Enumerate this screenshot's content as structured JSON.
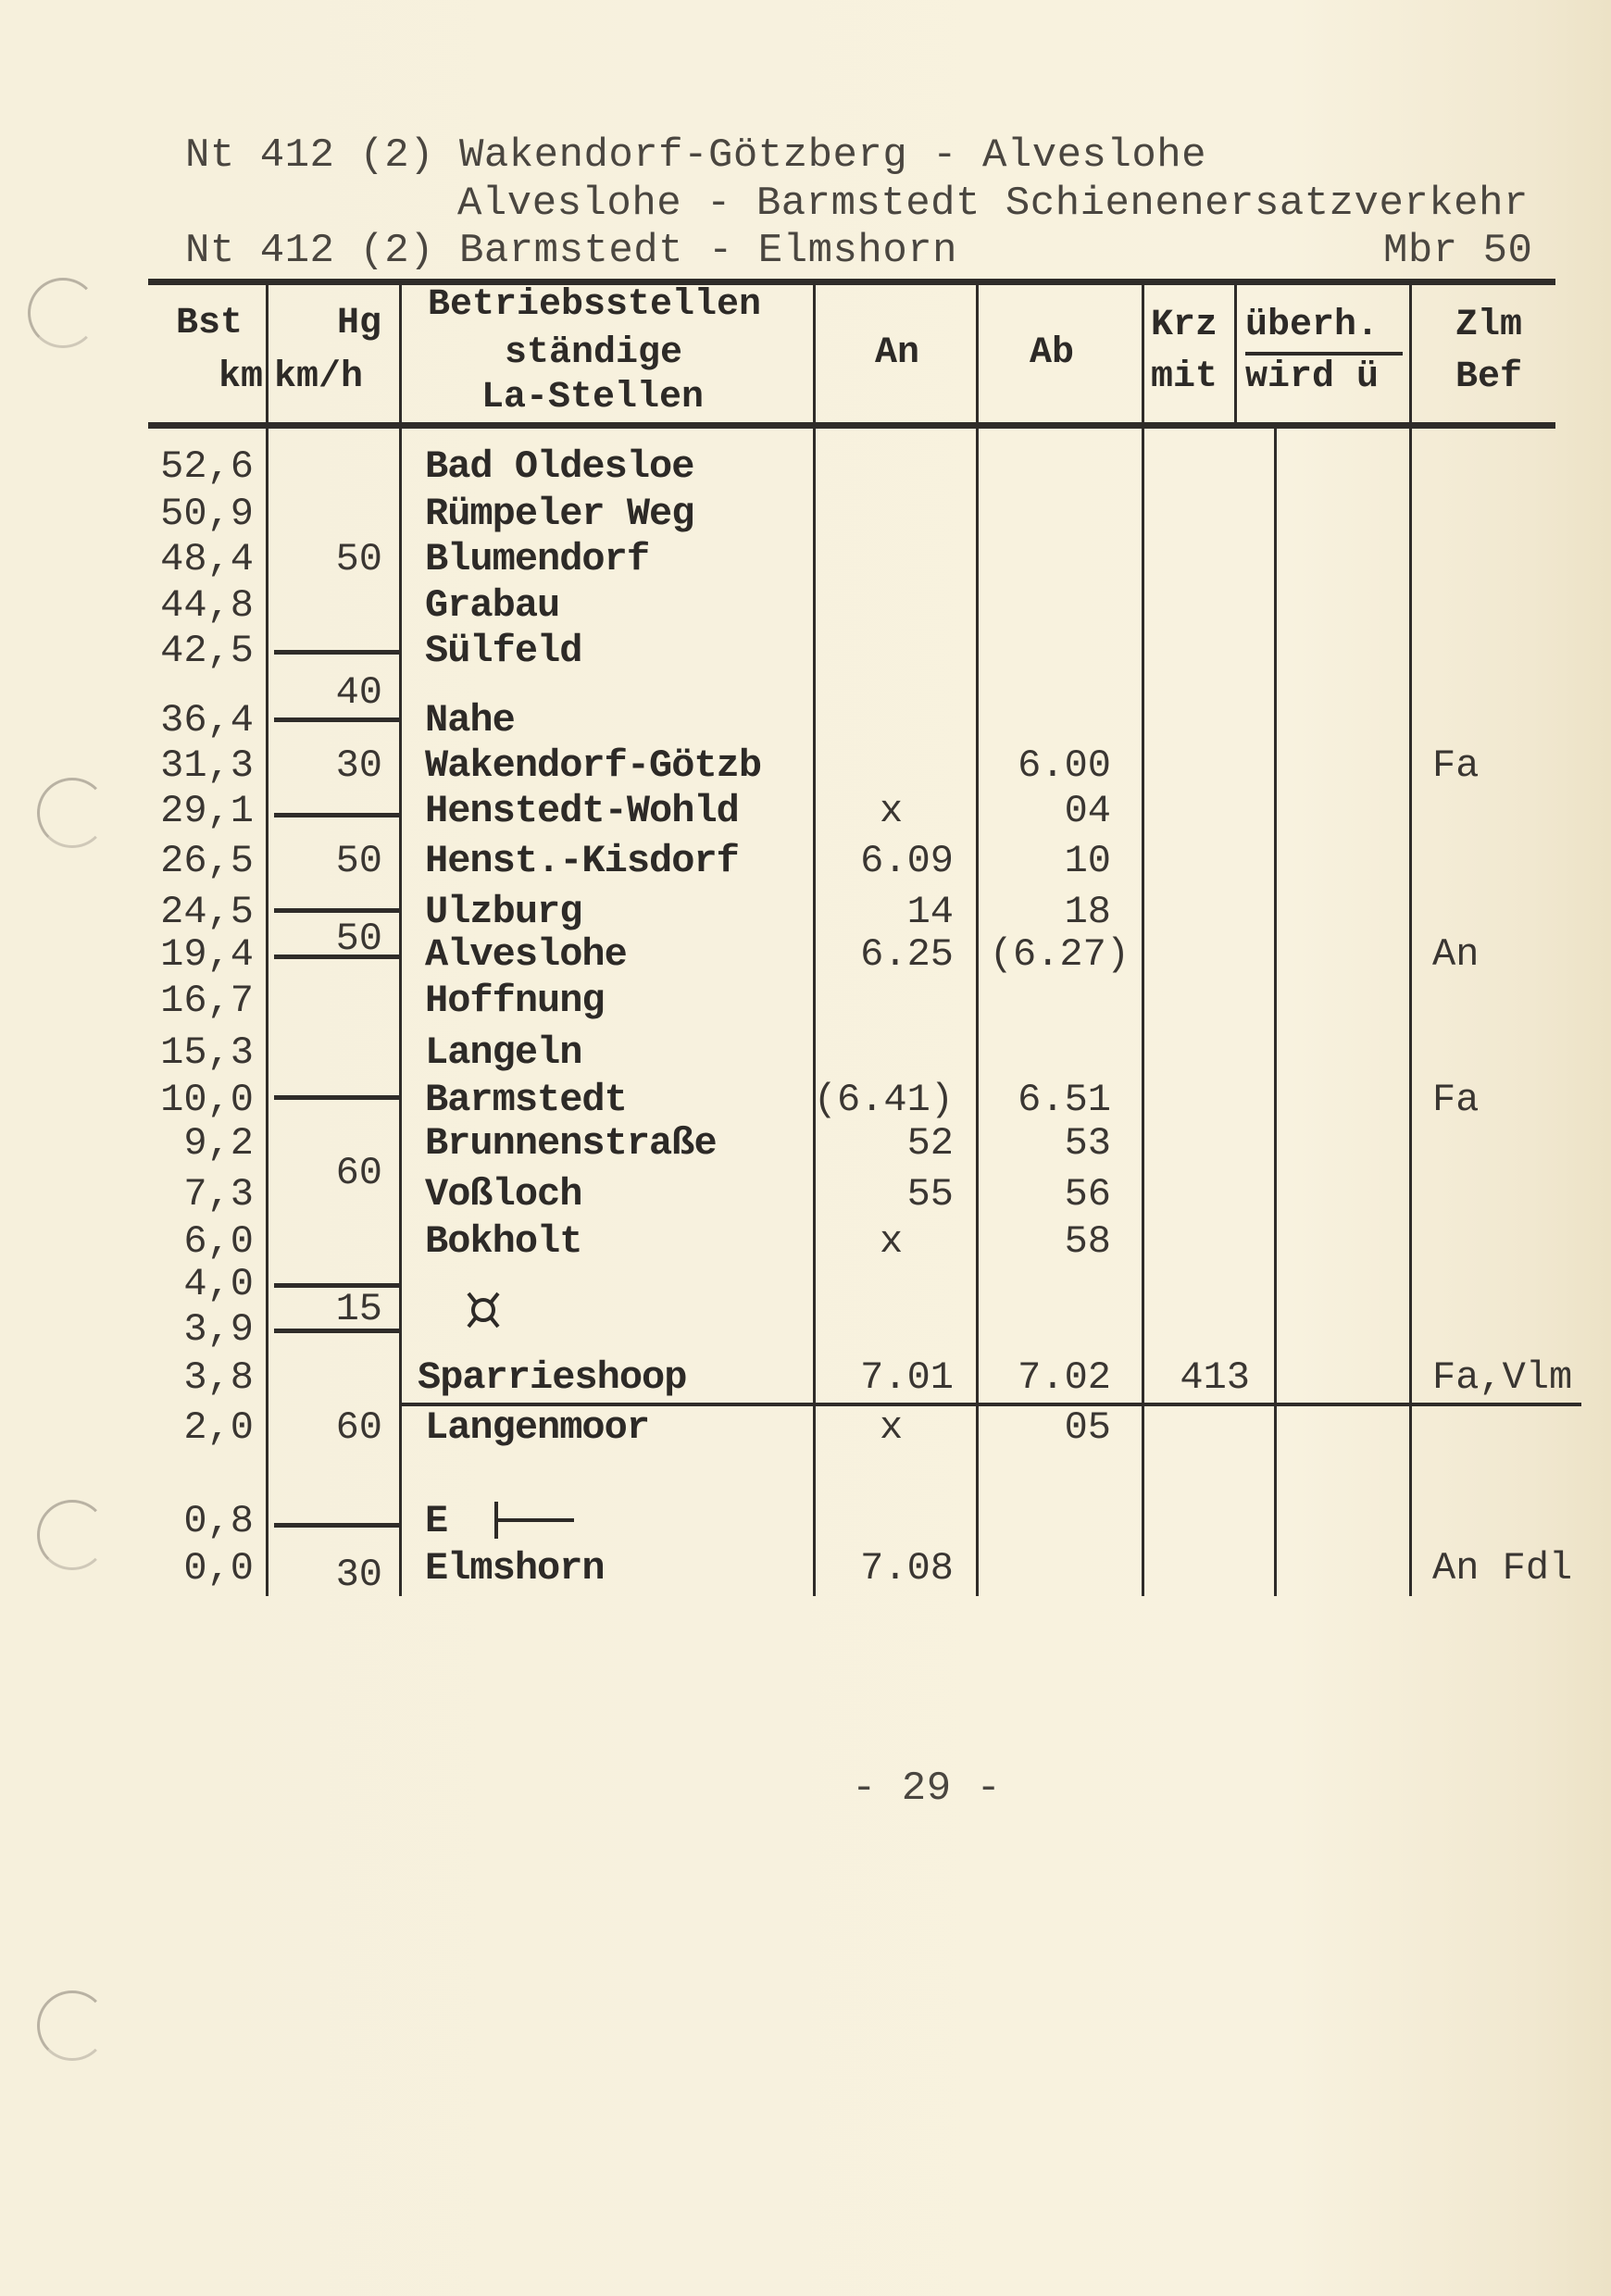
{
  "header": {
    "line1": "Nt 412 (2) Wakendorf-Götzberg - Alveslohe",
    "line2": "Alveslohe - Barmstedt Schienenersatzverkehr",
    "line3": "Nt 412 (2) Barmstedt - Elmshorn",
    "mbr": "Mbr 50"
  },
  "columns": {
    "bst": "Bst",
    "bst_unit": "km",
    "hg": "Hg",
    "hg_unit": "km/h",
    "stations1": "Betriebsstellen",
    "stations2": "ständige",
    "stations3": "La-Stellen",
    "an": "An",
    "ab": "Ab",
    "krz": "Krz",
    "krz2": "mit",
    "uberh": "überh.",
    "uberh2": "wird ü",
    "zlm": "Zlm",
    "zlm2": "Bef"
  },
  "rows": [
    {
      "km": "52,6",
      "station": "Bad Oldesloe",
      "an": "",
      "ab": "",
      "krz": "",
      "zlm": ""
    },
    {
      "km": "50,9",
      "station": "Rümpeler Weg",
      "an": "",
      "ab": "",
      "krz": "",
      "zlm": ""
    },
    {
      "km": "48,4",
      "station": "Blumendorf",
      "an": "",
      "ab": "",
      "krz": "",
      "zlm": ""
    },
    {
      "km": "44,8",
      "station": "Grabau",
      "an": "",
      "ab": "",
      "krz": "",
      "zlm": ""
    },
    {
      "km": "42,5",
      "station": "Sülfeld",
      "an": "",
      "ab": "",
      "krz": "",
      "zlm": ""
    },
    {
      "km": "36,4",
      "station": "Nahe",
      "an": "",
      "ab": "",
      "krz": "",
      "zlm": ""
    },
    {
      "km": "31,3",
      "station": "Wakendorf-Götzb",
      "an": "",
      "ab": "6.00",
      "krz": "",
      "zlm": "Fa"
    },
    {
      "km": "29,1",
      "station": "Henstedt-Wohld",
      "an": "x",
      "ab": "04",
      "krz": "",
      "zlm": ""
    },
    {
      "km": "26,5",
      "station": "Henst.-Kisdorf",
      "an": "6.09",
      "ab": "10",
      "krz": "",
      "zlm": ""
    },
    {
      "km": "24,5",
      "station": "Ulzburg",
      "an": "14",
      "ab": "18",
      "krz": "",
      "zlm": ""
    },
    {
      "km": "19,4",
      "station": "Alveslohe",
      "an": "6.25",
      "ab": "(6.27)",
      "krz": "",
      "zlm": "An"
    },
    {
      "km": "16,7",
      "station": "Hoffnung",
      "an": "",
      "ab": "",
      "krz": "",
      "zlm": ""
    },
    {
      "km": "15,3",
      "station": "Langeln",
      "an": "",
      "ab": "",
      "krz": "",
      "zlm": ""
    },
    {
      "km": "10,0",
      "station": "Barmstedt",
      "an": "(6.41)",
      "ab": "6.51",
      "krz": "",
      "zlm": "Fa"
    },
    {
      "km": "9,2",
      "station": "Brunnenstraße",
      "an": "52",
      "ab": "53",
      "krz": "",
      "zlm": ""
    },
    {
      "km": "7,3",
      "station": "Voßloch",
      "an": "55",
      "ab": "56",
      "krz": "",
      "zlm": ""
    },
    {
      "km": "6,0",
      "station": "Bokholt",
      "an": "x",
      "ab": "58",
      "krz": "",
      "zlm": ""
    },
    {
      "km": "4,0",
      "station": "",
      "an": "",
      "ab": "",
      "krz": "",
      "zlm": ""
    },
    {
      "km": "3,9",
      "station": "",
      "an": "",
      "ab": "",
      "krz": "",
      "zlm": ""
    },
    {
      "km": "3,8",
      "station": "Sparrieshoop",
      "an": "7.01",
      "ab": "7.02",
      "krz": "413",
      "zlm": "Fa,Vlm"
    },
    {
      "km": "2,0",
      "station": "Langenmoor",
      "an": "x",
      "ab": "05",
      "krz": "",
      "zlm": ""
    },
    {
      "km": "0,8",
      "station": "E",
      "an": "",
      "ab": "",
      "krz": "",
      "zlm": ""
    },
    {
      "km": "0,0",
      "station": "Elmshorn",
      "an": "7.08",
      "ab": "",
      "krz": "",
      "zlm": "An Fdl"
    }
  ],
  "speeds": [
    "50",
    "40",
    "30",
    "50",
    "50",
    "60",
    "15",
    "60",
    "30"
  ],
  "icons": {
    "level_crossing": "currency-sign-symbol",
    "signal": "entry-signal-symbol"
  },
  "page_number": "- 29 -"
}
